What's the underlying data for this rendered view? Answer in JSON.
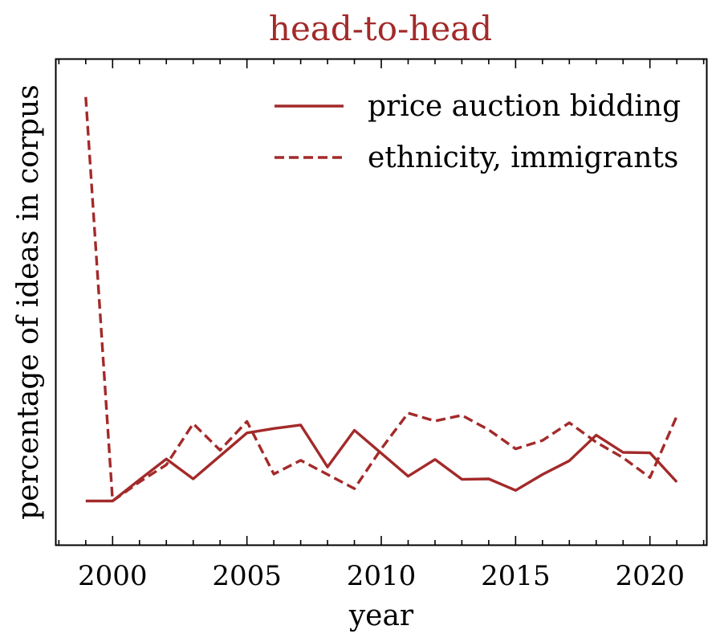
{
  "colors": {
    "series": "#A32A2A",
    "title": "#A32A2A",
    "axis": "#000000",
    "background": "#ffffff"
  },
  "chart_data": {
    "type": "line",
    "title": "head-to-head",
    "xlabel": "year",
    "ylabel": "percentage of ideas in corpus",
    "xlim": [
      1997.9,
      2022.1
    ],
    "ylim": [
      0,
      100
    ],
    "y_tick_labels_shown": false,
    "x_ticks": [
      2000,
      2005,
      2010,
      2015,
      2020
    ],
    "x_tick_labels": [
      "2000",
      "2005",
      "2010",
      "2015",
      "2020"
    ],
    "x_minor_tick_step": 1,
    "grid": false,
    "legend_position": "top-right",
    "x": [
      1999,
      2000,
      2001,
      2002,
      2003,
      2004,
      2005,
      2006,
      2007,
      2008,
      2009,
      2010,
      2011,
      2012,
      2013,
      2014,
      2015,
      2016,
      2017,
      2018,
      2019,
      2020,
      2021
    ],
    "series": [
      {
        "name": "price auction bidding",
        "line_style": "solid",
        "values": [
          5.0,
          5.0,
          9.8,
          14.5,
          10.0,
          15.2,
          20.4,
          21.4,
          22.2,
          12.7,
          21.0,
          15.8,
          10.6,
          14.4,
          9.9,
          10.0,
          7.4,
          11.0,
          14.1,
          19.9,
          16.0,
          15.9,
          9.3
        ]
      },
      {
        "name": "ethnicity, immigrants",
        "line_style": "dashed",
        "values": [
          96.4,
          5.0,
          9.3,
          13.2,
          22.5,
          16.5,
          23.0,
          11.1,
          14.2,
          11.0,
          7.8,
          16.8,
          24.9,
          23.1,
          24.4,
          21.1,
          16.8,
          18.7,
          22.7,
          18.3,
          14.8,
          10.3,
          24.2
        ]
      }
    ]
  }
}
